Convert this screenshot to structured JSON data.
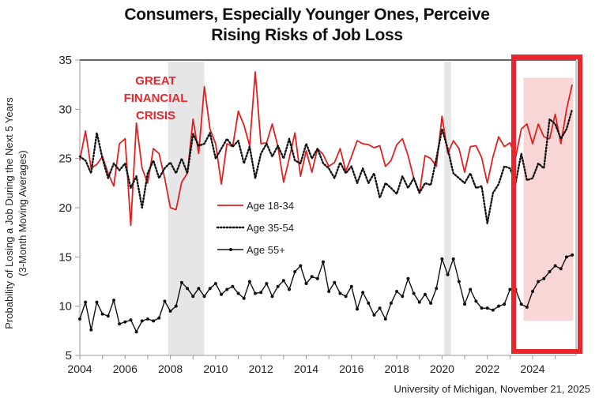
{
  "chart_data": {
    "type": "line",
    "title": "Consumers, Especially Younger Ones, Perceive Rising Risks of Job Loss",
    "title_lines": [
      "Consumers, Especially Younger Ones, Perceive",
      "Rising Risks of Job Loss"
    ],
    "ylabel": "Probability of Losing a Job During the Next 5 Years",
    "ylabel_sub": "(3-Month Moving Averages)",
    "xlabel": "",
    "ylim": [
      5,
      35
    ],
    "xlim": [
      2004,
      2025.9
    ],
    "yticks": [
      5,
      10,
      15,
      20,
      25,
      30,
      35
    ],
    "xticks": [
      2004,
      2006,
      2008,
      2010,
      2012,
      2014,
      2016,
      2018,
      2020,
      2022,
      2024
    ],
    "grid": false,
    "legend_position": "center-left",
    "source": "University of Michigan, November 21, 2025",
    "annotations": [
      {
        "text_lines": [
          "GREAT",
          "FINANCIAL",
          "CRISIS"
        ],
        "color": "#e8262c",
        "x": 2007.3,
        "y": 30.5
      }
    ],
    "shaded_regions": [
      {
        "name": "recession-2008",
        "x0": 2007.9,
        "x1": 2009.5,
        "color": "#e6e6e8"
      },
      {
        "name": "recession-2020",
        "x0": 2020.1,
        "x1": 2020.4,
        "color": "#e6e6e8"
      },
      {
        "name": "highlight-2024",
        "x0": 2023.6,
        "x1": 2025.8,
        "y0": 8.5,
        "y1": 33.2,
        "color": "#f9d6d6"
      }
    ],
    "highlight_box": {
      "x0": 2023.1,
      "x1": 2026.2,
      "y0": 5.2,
      "y1": 35.5,
      "color": "#e8262c"
    },
    "series": [
      {
        "name": "Age 18-34",
        "style": "solid",
        "color": "#e02020",
        "x": [
          2004.0,
          2004.25,
          2004.5,
          2004.75,
          2005.0,
          2005.25,
          2005.5,
          2005.75,
          2006.0,
          2006.25,
          2006.5,
          2006.75,
          2007.0,
          2007.25,
          2007.5,
          2007.75,
          2008.0,
          2008.25,
          2008.5,
          2008.75,
          2009.0,
          2009.25,
          2009.5,
          2009.75,
          2010.0,
          2010.25,
          2010.5,
          2010.75,
          2011.0,
          2011.25,
          2011.5,
          2011.75,
          2012.0,
          2012.25,
          2012.5,
          2012.75,
          2013.0,
          2013.25,
          2013.5,
          2013.75,
          2014.0,
          2014.25,
          2014.5,
          2014.75,
          2015.0,
          2015.25,
          2015.5,
          2015.75,
          2016.0,
          2016.25,
          2016.5,
          2016.75,
          2017.0,
          2017.25,
          2017.5,
          2017.75,
          2018.0,
          2018.25,
          2018.5,
          2018.75,
          2019.0,
          2019.25,
          2019.5,
          2019.75,
          2020.0,
          2020.25,
          2020.5,
          2020.75,
          2021.0,
          2021.25,
          2021.5,
          2021.75,
          2022.0,
          2022.25,
          2022.5,
          2022.75,
          2023.0,
          2023.25,
          2023.5,
          2023.75,
          2024.0,
          2024.25,
          2024.5,
          2024.75,
          2025.0,
          2025.25,
          2025.5,
          2025.75
        ],
        "values": [
          24.8,
          27.8,
          24.0,
          24.4,
          25.2,
          23.5,
          22.2,
          26.5,
          27.0,
          18.2,
          28.6,
          24.0,
          22.5,
          26.0,
          25.5,
          23.0,
          20.0,
          19.8,
          22.6,
          23.5,
          29.0,
          25.5,
          32.3,
          28.0,
          26.5,
          22.4,
          26.5,
          26.2,
          29.8,
          28.4,
          26.3,
          33.8,
          26.5,
          26.6,
          28.5,
          26.2,
          22.6,
          25.0,
          27.6,
          23.2,
          25.8,
          23.6,
          26.0,
          25.4,
          24.2,
          24.6,
          26.0,
          23.7,
          25.2,
          26.8,
          26.5,
          26.4,
          26.1,
          26.3,
          24.2,
          24.8,
          26.4,
          27.0,
          25.3,
          23.0,
          21.5,
          25.3,
          25.0,
          24.2,
          29.3,
          25.5,
          26.8,
          26.0,
          23.6,
          26.2,
          26.3,
          25.1,
          22.5,
          25.2,
          27.2,
          26.2,
          26.6,
          25.1,
          28.0,
          28.5,
          26.5,
          28.5,
          27.2,
          27.0,
          29.5,
          26.5,
          30.0,
          32.5
        ]
      },
      {
        "name": "Age 35-54",
        "style": "dotted",
        "color": "#111111",
        "x": [
          2004.0,
          2004.25,
          2004.5,
          2004.75,
          2005.0,
          2005.25,
          2005.5,
          2005.75,
          2006.0,
          2006.25,
          2006.5,
          2006.75,
          2007.0,
          2007.25,
          2007.5,
          2007.75,
          2008.0,
          2008.25,
          2008.5,
          2008.75,
          2009.0,
          2009.25,
          2009.5,
          2009.75,
          2010.0,
          2010.25,
          2010.5,
          2010.75,
          2011.0,
          2011.25,
          2011.5,
          2011.75,
          2012.0,
          2012.25,
          2012.5,
          2012.75,
          2013.0,
          2013.25,
          2013.5,
          2013.75,
          2014.0,
          2014.25,
          2014.5,
          2014.75,
          2015.0,
          2015.25,
          2015.5,
          2015.75,
          2016.0,
          2016.25,
          2016.5,
          2016.75,
          2017.0,
          2017.25,
          2017.5,
          2017.75,
          2018.0,
          2018.25,
          2018.5,
          2018.75,
          2019.0,
          2019.25,
          2019.5,
          2019.75,
          2020.0,
          2020.25,
          2020.5,
          2020.75,
          2021.0,
          2021.25,
          2021.5,
          2021.75,
          2022.0,
          2022.25,
          2022.5,
          2022.75,
          2023.0,
          2023.25,
          2023.5,
          2023.75,
          2024.0,
          2024.25,
          2024.5,
          2024.75,
          2025.0,
          2025.25,
          2025.5,
          2025.75
        ],
        "values": [
          25.2,
          24.8,
          23.5,
          27.6,
          25.0,
          23.0,
          24.5,
          23.8,
          24.5,
          22.0,
          23.2,
          20.0,
          23.5,
          24.8,
          23.0,
          24.0,
          24.6,
          23.5,
          25.0,
          23.5,
          27.5,
          26.3,
          26.5,
          27.6,
          25.0,
          26.0,
          27.0,
          26.2,
          26.8,
          24.5,
          26.2,
          23.0,
          25.5,
          26.5,
          25.2,
          26.3,
          25.0,
          27.0,
          24.8,
          24.5,
          26.5,
          25.0,
          26.0,
          24.5,
          24.0,
          23.0,
          24.6,
          23.5,
          24.2,
          22.5,
          24.0,
          22.5,
          23.5,
          21.0,
          22.5,
          22.0,
          21.4,
          23.2,
          22.0,
          23.0,
          21.5,
          22.5,
          22.3,
          25.0,
          28.0,
          26.0,
          23.5,
          23.0,
          22.5,
          23.5,
          22.0,
          22.2,
          18.4,
          21.5,
          22.4,
          24.2,
          24.0,
          22.5,
          25.5,
          22.8,
          23.0,
          24.5,
          24.0,
          29.0,
          28.5,
          27.0,
          28.0,
          30.0
        ]
      },
      {
        "name": "Age 55+",
        "style": "solid-marker",
        "color": "#111111",
        "x": [
          2004.0,
          2004.25,
          2004.5,
          2004.75,
          2005.0,
          2005.25,
          2005.5,
          2005.75,
          2006.0,
          2006.25,
          2006.5,
          2006.75,
          2007.0,
          2007.25,
          2007.5,
          2007.75,
          2008.0,
          2008.25,
          2008.5,
          2008.75,
          2009.0,
          2009.25,
          2009.5,
          2009.75,
          2010.0,
          2010.25,
          2010.5,
          2010.75,
          2011.0,
          2011.25,
          2011.5,
          2011.75,
          2012.0,
          2012.25,
          2012.5,
          2012.75,
          2013.0,
          2013.25,
          2013.5,
          2013.75,
          2014.0,
          2014.25,
          2014.5,
          2014.75,
          2015.0,
          2015.25,
          2015.5,
          2015.75,
          2016.0,
          2016.25,
          2016.5,
          2016.75,
          2017.0,
          2017.25,
          2017.5,
          2017.75,
          2018.0,
          2018.25,
          2018.5,
          2018.75,
          2019.0,
          2019.25,
          2019.5,
          2019.75,
          2020.0,
          2020.25,
          2020.5,
          2020.75,
          2021.0,
          2021.25,
          2021.5,
          2021.75,
          2022.0,
          2022.25,
          2022.5,
          2022.75,
          2023.0,
          2023.25,
          2023.5,
          2023.75,
          2024.0,
          2024.25,
          2024.5,
          2024.75,
          2025.0,
          2025.25,
          2025.5,
          2025.75
        ],
        "values": [
          8.7,
          10.4,
          7.6,
          10.4,
          9.2,
          9.0,
          10.6,
          8.2,
          8.4,
          8.6,
          7.4,
          8.5,
          8.7,
          8.5,
          8.8,
          10.5,
          9.5,
          10.0,
          12.4,
          11.8,
          11.0,
          11.8,
          11.0,
          11.8,
          12.3,
          11.2,
          11.7,
          12.0,
          11.3,
          10.8,
          12.5,
          11.3,
          11.4,
          12.3,
          11.0,
          12.0,
          12.6,
          11.7,
          13.5,
          14.1,
          12.3,
          13.0,
          12.8,
          14.5,
          11.5,
          12.4,
          11.3,
          11.0,
          12.0,
          9.7,
          11.4,
          10.3,
          9.1,
          9.8,
          8.7,
          10.3,
          11.5,
          11.0,
          12.8,
          11.3,
          10.4,
          11.2,
          10.3,
          11.8,
          14.8,
          13.2,
          14.8,
          12.5,
          10.2,
          11.7,
          10.5,
          9.8,
          9.8,
          9.6,
          10.0,
          10.2,
          11.7,
          11.7,
          10.2,
          9.9,
          11.5,
          12.5,
          12.8,
          13.5,
          14.1,
          13.8,
          15.0,
          15.2
        ]
      }
    ]
  }
}
